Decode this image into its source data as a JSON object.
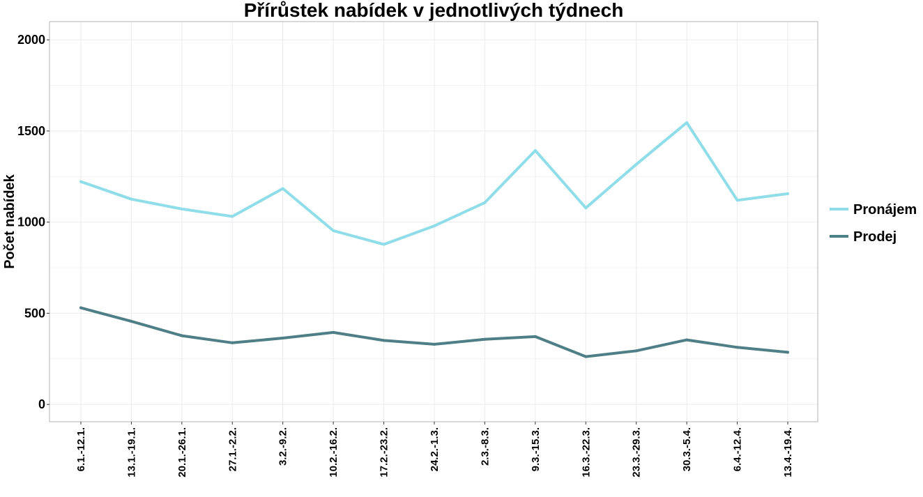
{
  "chart_data": {
    "type": "line",
    "title": "Přírůstek nabídek v jednotlivých týdnech",
    "xlabel": "",
    "ylabel": "Počet nabídek",
    "ylim": [
      -95,
      2100
    ],
    "yticks": [
      0,
      500,
      1000,
      1500,
      2000
    ],
    "grid": true,
    "legend_position": "right",
    "categories": [
      "6.1.-12.1.",
      "13.1.-19.1.",
      "20.1.-26.1.",
      "27.1.-2.2.",
      "3.2.-9.2.",
      "10.2.-16.2.",
      "17.2.-23.2.",
      "24.2.-1.3.",
      "2.3.-8.3.",
      "9.3.-15.3.",
      "16.3.-22.3.",
      "23.3.-29.3.",
      "30.3.-5.4.",
      "6.4.-12.4.",
      "13.4.-19.4."
    ],
    "series": [
      {
        "name": "Pronájem",
        "color": "#8fdde8",
        "values": [
          1222,
          1126,
          1072,
          1031,
          1184,
          953,
          878,
          979,
          1107,
          1393,
          1078,
          1317,
          1546,
          1120,
          1156
        ]
      },
      {
        "name": "Prodej",
        "color": "#4f7f86",
        "values": [
          530,
          456,
          377,
          338,
          364,
          395,
          351,
          330,
          357,
          372,
          262,
          294,
          354,
          313,
          286
        ]
      }
    ]
  }
}
